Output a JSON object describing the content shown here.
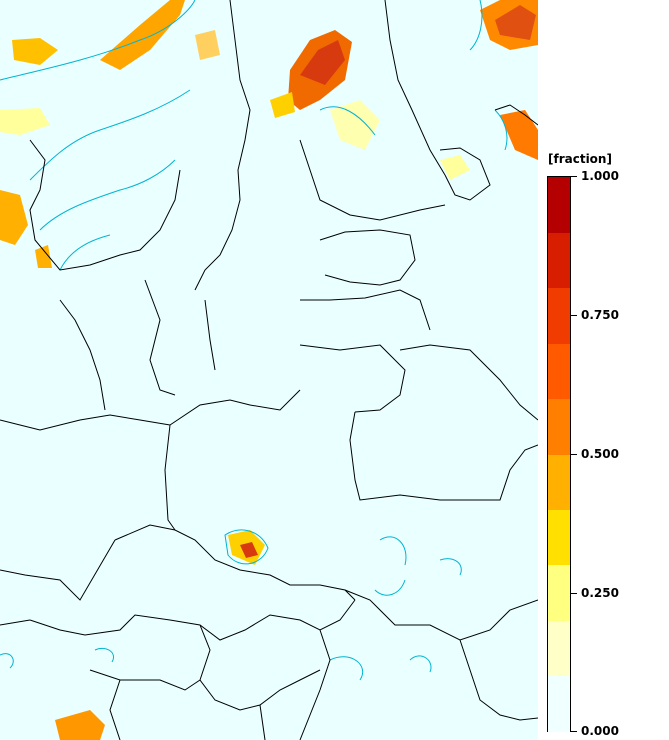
{
  "legend": {
    "unit": "[fraction]",
    "tick_labels": [
      "1.000",
      "0.750",
      "0.500",
      "0.250",
      "0.000"
    ],
    "tick_values": [
      1.0,
      0.75,
      0.5,
      0.25,
      0.0
    ],
    "color_steps": [
      "#f0ffff",
      "#ffffc8",
      "#ffff80",
      "#ffe000",
      "#ffb000",
      "#ff8000",
      "#ff5a00",
      "#f03c00",
      "#d81e00",
      "#b40000"
    ]
  },
  "map": {
    "background": "#eaffff",
    "land_contour_color": "#00b4d2",
    "border_color": "#000000"
  }
}
